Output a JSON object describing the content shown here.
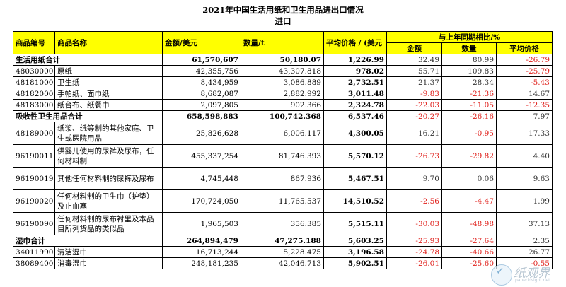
{
  "title": "2021年中国生活用纸和卫生用品进出口情况",
  "subtitle": "进口",
  "headers": {
    "code": "商品编号",
    "name": "商品名称",
    "amount": "金额/美元",
    "quantity": "数量/t",
    "avg_price": "平均价格 / (美元",
    "yoy": "与上年同期相比/%",
    "yoy_amount": "金额",
    "yoy_quantity": "数量",
    "yoy_price": "平均价格"
  },
  "rows": [
    {
      "code": "生活用纸合计",
      "name": "",
      "amount": "61,570,607",
      "quantity": "50,180.07",
      "price": "1,226.99",
      "y1": "32.49",
      "y2": "80.99",
      "y3": "-26.79",
      "total": true
    },
    {
      "code": "48030000",
      "name": "原纸",
      "amount": "42,355,756",
      "quantity": "43,307.818",
      "price": "978.02",
      "y1": "55.71",
      "y2": "109.83",
      "y3": "-25.79"
    },
    {
      "code": "48181000",
      "name": "卫生纸",
      "amount": "8,434,959",
      "quantity": "3,086.889",
      "price": "2,732.51",
      "y1": "21.37",
      "y2": "28.34",
      "y3": "-5.43"
    },
    {
      "code": "48182000",
      "name": "手帕纸、面巾纸",
      "amount": "8,682,087",
      "quantity": "2,882.992",
      "price": "3,011.48",
      "y1": "-9.83",
      "y2": "-21.36",
      "y3": "14.67"
    },
    {
      "code": "48183000",
      "name": "纸台布、纸餐巾",
      "amount": "2,097,805",
      "quantity": "902.366",
      "price": "2,324.78",
      "y1": "-22.03",
      "y2": "-11.05",
      "y3": "-12.35"
    },
    {
      "code": "吸收性卫生用品合计",
      "name": "",
      "amount": "658,598,883",
      "quantity": "100,742.368",
      "price": "6,537.46",
      "y1": "-20.27",
      "y2": "-26.16",
      "y3": "7.97",
      "total": true
    },
    {
      "code": "48189000",
      "name": "纸浆、纸等制的其他家庭、卫生或医院用品",
      "amount": "25,826,628",
      "quantity": "6,006.117",
      "price": "4,300.05",
      "y1": "16.21",
      "y2": "-0.95",
      "y3": "17.33",
      "tall": true
    },
    {
      "code": "96190011",
      "name": "供婴儿使用的尿裤及尿布，任何材料制",
      "amount": "455,337,254",
      "quantity": "81,746.393",
      "price": "5,570.12",
      "y1": "-26.73",
      "y2": "-29.82",
      "y3": "4.40",
      "tall": true
    },
    {
      "code": "96190019",
      "name": "其他任何材料制的尿裤及尿布",
      "amount": "4,745,448",
      "quantity": "867.936",
      "price": "5,467.51",
      "y1": "9.70",
      "y2": "0.06",
      "y3": "9.63",
      "tall": true
    },
    {
      "code": "96190020",
      "name": "任何材料制的卫生巾（护垫）及止血塞",
      "amount": "170,724,050",
      "quantity": "11,765.537",
      "price": "14,510.52",
      "y1": "-2.56",
      "y2": "-4.47",
      "y3": "1.99",
      "tall": true
    },
    {
      "code": "96190090",
      "name": "任何材料制的尿布衬里及本品目所列货品的类似品",
      "amount": "1,965,503",
      "quantity": "356.385",
      "price": "5,515.11",
      "y1": "-30.03",
      "y2": "-48.98",
      "y3": "37.13",
      "tall": true
    },
    {
      "code": "湿巾合计",
      "name": "",
      "amount": "264,894,479",
      "quantity": "47,275.188",
      "price": "5,603.25",
      "y1": "-25.93",
      "y2": "-27.64",
      "y3": "2.35",
      "total": true
    },
    {
      "code": "34011990",
      "name": "清洁湿巾",
      "amount": "16,713,244",
      "quantity": "5,228.475",
      "price": "3,196.58",
      "y1": "-24.78",
      "y2": "-40.66",
      "y3": "26.77"
    },
    {
      "code": "38089400",
      "name": "消毒湿巾",
      "amount": "248,181,235",
      "quantity": "42,046.713",
      "price": "5,902.51",
      "y1": "-26.01",
      "y2": "-25.60",
      "y3": "-0.55"
    }
  ],
  "watermark": {
    "text": "纸观界",
    "url": "paperinsight.net"
  }
}
